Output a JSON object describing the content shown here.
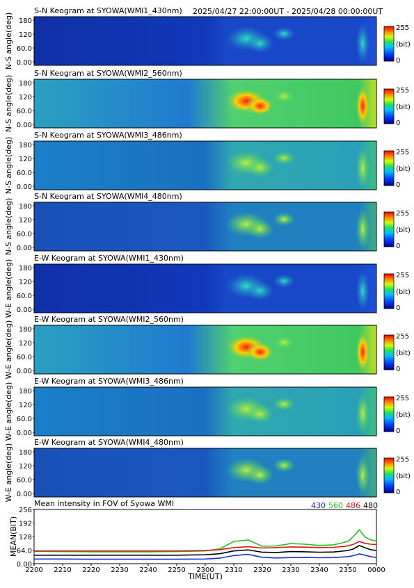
{
  "header": {
    "time_range": "2025/04/27 22:00:00UT - 2025/04/28 00:00:00UT"
  },
  "colorbar": {
    "max_label": "255",
    "unit_label": "(bit)",
    "min_label": "0"
  },
  "chart_data": [
    {
      "type": "heatmap",
      "title": "S-N Keogram at SYOWA(WMI1_430nm)",
      "ylabel": "N-S angle(deg)",
      "yticks": [
        "180",
        "120",
        "60.0",
        "0.00"
      ],
      "ylim": [
        0,
        180
      ],
      "xlim": [
        "2200",
        "0000"
      ],
      "colorbar": [
        0,
        255
      ],
      "intensity_level": "low"
    },
    {
      "type": "heatmap",
      "title": "S-N Keogram at SYOWA(WMI2_560nm)",
      "ylabel": "N-S angle(deg)",
      "yticks": [
        "180",
        "120",
        "60.0",
        "0.00"
      ],
      "ylim": [
        0,
        180
      ],
      "xlim": [
        "2200",
        "0000"
      ],
      "colorbar": [
        0,
        255
      ],
      "intensity_level": "high"
    },
    {
      "type": "heatmap",
      "title": "S-N Keogram at SYOWA(WMI3_486nm)",
      "ylabel": "N-S angle(deg)",
      "yticks": [
        "180",
        "120",
        "60.0",
        "0.00"
      ],
      "ylim": [
        0,
        180
      ],
      "xlim": [
        "2200",
        "0000"
      ],
      "colorbar": [
        0,
        255
      ],
      "intensity_level": "medium"
    },
    {
      "type": "heatmap",
      "title": "S-N Keogram at SYOWA(WMI4_480nm)",
      "ylabel": "N-S angle(deg)",
      "yticks": [
        "180",
        "120",
        "60.0",
        "0.00"
      ],
      "ylim": [
        0,
        180
      ],
      "xlim": [
        "2200",
        "0000"
      ],
      "colorbar": [
        0,
        255
      ],
      "intensity_level": "low-medium"
    },
    {
      "type": "heatmap",
      "title": "E-W Keogram at SYOWA(WMI1_430nm)",
      "ylabel": "W-E angle(deg)",
      "yticks": [
        "180",
        "120",
        "60.0",
        "0.00"
      ],
      "ylim": [
        0,
        180
      ],
      "xlim": [
        "2200",
        "0000"
      ],
      "colorbar": [
        0,
        255
      ],
      "intensity_level": "low"
    },
    {
      "type": "heatmap",
      "title": "E-W Keogram at SYOWA(WMI2_560nm)",
      "ylabel": "W-E angle(deg)",
      "yticks": [
        "180",
        "120",
        "60.0",
        "0.00"
      ],
      "ylim": [
        0,
        180
      ],
      "xlim": [
        "2200",
        "0000"
      ],
      "colorbar": [
        0,
        255
      ],
      "intensity_level": "high"
    },
    {
      "type": "heatmap",
      "title": "E-W Keogram at SYOWA(WMI3_486nm)",
      "ylabel": "W-E angle(deg)",
      "yticks": [
        "180",
        "120",
        "60.0",
        "0.00"
      ],
      "ylim": [
        0,
        180
      ],
      "xlim": [
        "2200",
        "0000"
      ],
      "colorbar": [
        0,
        255
      ],
      "intensity_level": "medium"
    },
    {
      "type": "heatmap",
      "title": "E-W Keogram at SYOWA(WMI4_480nm)",
      "ylabel": "W-E angle(deg)",
      "yticks": [
        "180",
        "120",
        "60.0",
        "0.00"
      ],
      "ylim": [
        0,
        180
      ],
      "xlim": [
        "2200",
        "0000"
      ],
      "colorbar": [
        0,
        255
      ],
      "intensity_level": "low-medium"
    },
    {
      "type": "line",
      "title": "Mean intensity in FOV of Syowa WMI",
      "ylabel": "MEAN(BIT)",
      "xlabel": "TIME(UT)",
      "yticks": [
        "256",
        "192",
        "128",
        "64.0",
        "0.00"
      ],
      "ylim": [
        0,
        256
      ],
      "xticks": [
        "2200",
        "2210",
        "2220",
        "2230",
        "2240",
        "2250",
        "2300",
        "2310",
        "2320",
        "2330",
        "2340",
        "2350",
        "0000"
      ],
      "x": [
        0,
        10,
        20,
        30,
        40,
        50,
        60,
        65,
        70,
        75,
        80,
        85,
        90,
        95,
        100,
        105,
        110,
        112,
        114,
        116,
        118,
        120
      ],
      "series": [
        {
          "name": "430",
          "color": "#1a2fd0",
          "values": [
            22,
            22,
            21,
            21,
            21,
            21,
            22,
            26,
            38,
            44,
            30,
            27,
            29,
            30,
            28,
            29,
            33,
            38,
            46,
            40,
            33,
            30
          ]
        },
        {
          "name": "560",
          "color": "#22c21e",
          "values": [
            58,
            57,
            56,
            56,
            56,
            57,
            60,
            70,
            105,
            112,
            82,
            84,
            95,
            92,
            86,
            89,
            105,
            130,
            160,
            125,
            112,
            108
          ]
        },
        {
          "name": "486",
          "color": "#e01616",
          "values": [
            60,
            60,
            60,
            60,
            60,
            60,
            62,
            66,
            76,
            80,
            74,
            76,
            79,
            78,
            76,
            77,
            84,
            92,
            105,
            96,
            92,
            90
          ]
        },
        {
          "name": "480",
          "color": "#000000",
          "values": [
            40,
            40,
            40,
            40,
            40,
            40,
            42,
            47,
            60,
            65,
            54,
            53,
            57,
            56,
            54,
            55,
            62,
            70,
            86,
            75,
            66,
            62
          ]
        }
      ]
    }
  ]
}
